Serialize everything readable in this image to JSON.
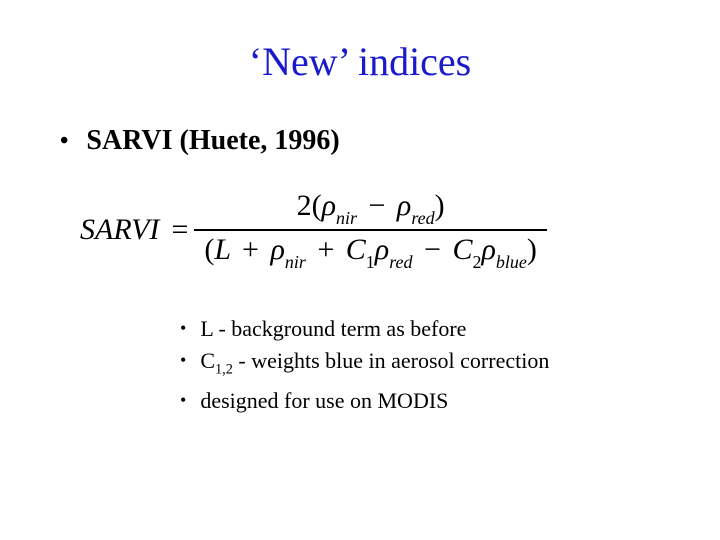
{
  "colors": {
    "title_color": "#1a1acc",
    "text_color": "#000000",
    "background": "#ffffff"
  },
  "typography": {
    "title_fontsize": 40,
    "main_bullet_fontsize": 28,
    "sub_bullet_fontsize": 22,
    "formula_fontsize": 30,
    "font_family": "Times New Roman"
  },
  "title": "‘New’ indices",
  "main_bullet": "SARVI (Huete, 1996)",
  "formula": {
    "lhs": "SARVI",
    "equals": "=",
    "numerator": {
      "coef": "2",
      "open": "(",
      "t1": {
        "sym": "ρ",
        "sub": "nir"
      },
      "minus": "−",
      "t2": {
        "sym": "ρ",
        "sub": "red"
      },
      "close": ")"
    },
    "denominator": {
      "open": "(",
      "L": "L",
      "plus1": "+",
      "t1": {
        "sym": "ρ",
        "sub": "nir"
      },
      "plus2": "+",
      "c1": {
        "sym": "C",
        "sub": "1"
      },
      "t2": {
        "sym": "ρ",
        "sub": "red"
      },
      "minus": "−",
      "c2": {
        "sym": "C",
        "sub": "2"
      },
      "t3": {
        "sym": "ρ",
        "sub": "blue"
      },
      "close": ")"
    }
  },
  "sub_bullets": [
    {
      "prefix": "L",
      "rest": " - background term as before"
    },
    {
      "prefix_c": "C",
      "prefix_sub": "1,2",
      "rest": " - weights blue in aerosol correction"
    },
    {
      "plain": "designed for use on MODIS"
    }
  ]
}
